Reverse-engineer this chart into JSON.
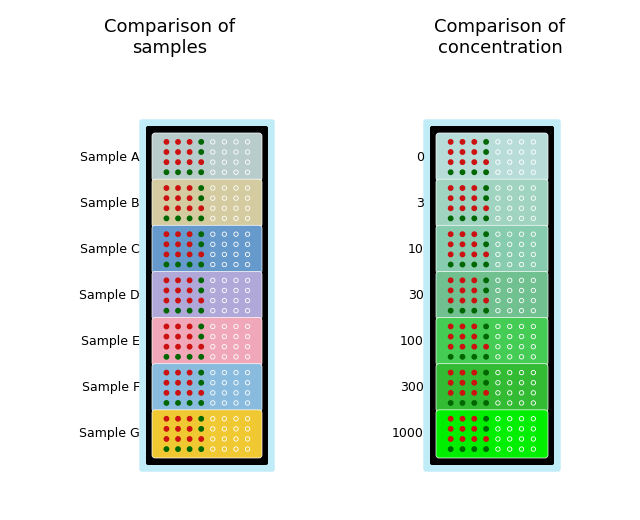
{
  "title1": "Comparison of\nsamples",
  "title2": "Comparison of\nconcentration",
  "left_labels": [
    "Sample A",
    "Sample B",
    "Sample C",
    "Sample D",
    "Sample E",
    "Sample F",
    "Sample G"
  ],
  "right_labels": [
    "0",
    "3",
    "10",
    "30",
    "100",
    "300",
    "1000"
  ],
  "left_card_colors": [
    "#b8cccc",
    "#d4cba0",
    "#6699cc",
    "#b0a8d8",
    "#f0a8b8",
    "#88bbdd",
    "#f0c832"
  ],
  "right_card_colors": [
    "#b8ddd8",
    "#a0d4c0",
    "#88ccb0",
    "#70c090",
    "#44cc55",
    "#33bb33",
    "#00ee00"
  ],
  "panel_bg": "#000000",
  "panel_border_color": "#c0ecf8",
  "fig_bg": "#ffffff",
  "title_fontsize": 13,
  "label_fontsize": 9
}
